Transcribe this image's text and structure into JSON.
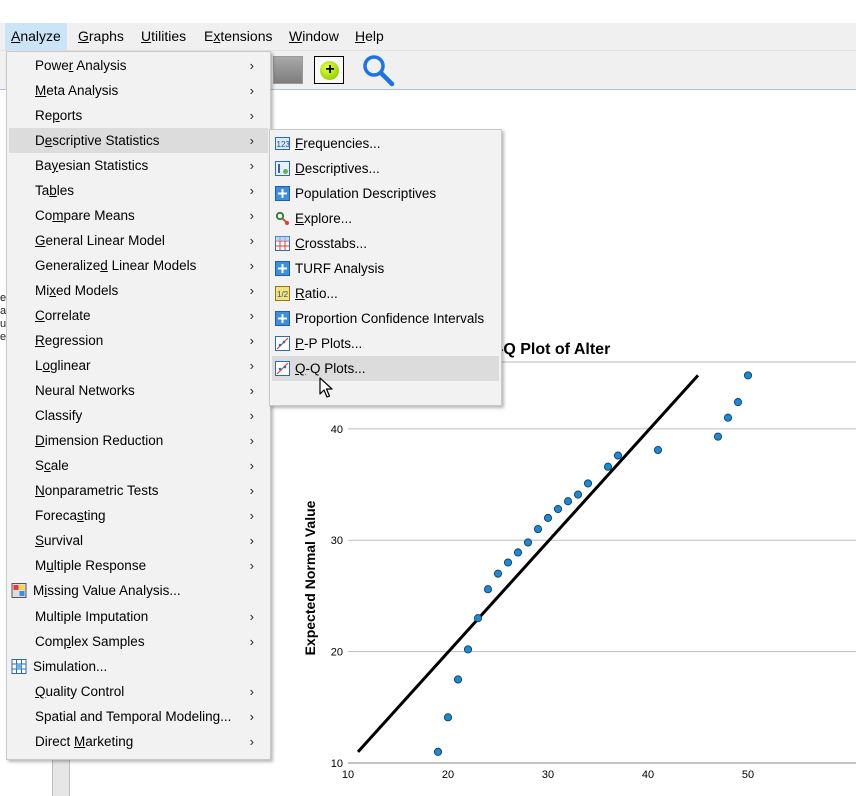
{
  "menubar": {
    "items": [
      {
        "label": "Analyze",
        "mnemonic": "A"
      },
      {
        "label": "Graphs",
        "mnemonic": "G"
      },
      {
        "label": "Utilities",
        "mnemonic": "U"
      },
      {
        "label": "Extensions",
        "mnemonic": "x"
      },
      {
        "label": "Window",
        "mnemonic": "W"
      },
      {
        "label": "Help",
        "mnemonic": "H"
      }
    ]
  },
  "background_text": [
    "er",
    "a",
    "us",
    "er"
  ],
  "analyze_menu": {
    "items": [
      {
        "label": "Power Analysis",
        "submenu": true
      },
      {
        "label": "Meta Analysis",
        "submenu": true
      },
      {
        "label": "Reports",
        "submenu": true
      },
      {
        "label": "Descriptive Statistics",
        "submenu": true,
        "highlighted": true
      },
      {
        "label": "Bayesian Statistics",
        "submenu": true
      },
      {
        "label": "Tables",
        "submenu": true
      },
      {
        "label": "Compare Means",
        "submenu": true
      },
      {
        "label": "General Linear Model",
        "submenu": true
      },
      {
        "label": "Generalized Linear Models",
        "submenu": true
      },
      {
        "label": "Mixed Models",
        "submenu": true
      },
      {
        "label": "Correlate",
        "submenu": true
      },
      {
        "label": "Regression",
        "submenu": true
      },
      {
        "label": "Loglinear",
        "submenu": true
      },
      {
        "label": "Neural Networks",
        "submenu": true
      },
      {
        "label": "Classify",
        "submenu": true
      },
      {
        "label": "Dimension Reduction",
        "submenu": true
      },
      {
        "label": "Scale",
        "submenu": true
      },
      {
        "label": "Nonparametric Tests",
        "submenu": true
      },
      {
        "label": "Forecasting",
        "submenu": true
      },
      {
        "label": "Survival",
        "submenu": true
      },
      {
        "label": "Multiple Response",
        "submenu": true
      },
      {
        "label": "Missing Value Analysis...",
        "submenu": false,
        "icon": "missing-value-icon"
      },
      {
        "label": "Multiple Imputation",
        "submenu": true
      },
      {
        "label": "Complex Samples",
        "submenu": true
      },
      {
        "label": "Simulation...",
        "submenu": false,
        "icon": "simulation-icon"
      },
      {
        "label": "Quality Control",
        "submenu": true
      },
      {
        "label": "Spatial and Temporal Modeling...",
        "submenu": true
      },
      {
        "label": "Direct Marketing",
        "submenu": true
      }
    ]
  },
  "descriptive_submenu": {
    "items": [
      {
        "label": "Frequencies...",
        "icon": "frequencies-icon"
      },
      {
        "label": "Descriptives...",
        "icon": "descriptives-icon"
      },
      {
        "label": "Population Descriptives",
        "icon": "plus-box-icon"
      },
      {
        "label": "Explore...",
        "icon": "explore-icon"
      },
      {
        "label": "Crosstabs...",
        "icon": "crosstabs-icon"
      },
      {
        "label": "TURF Analysis",
        "icon": "plus-box-icon"
      },
      {
        "label": "Ratio...",
        "icon": "ratio-icon"
      },
      {
        "label": "Proportion Confidence Intervals",
        "icon": "plus-box-icon"
      },
      {
        "label": "P-P Plots...",
        "icon": "pp-plot-icon"
      },
      {
        "label": "Q-Q Plots...",
        "icon": "qq-plot-icon",
        "highlighted": true
      }
    ]
  },
  "chart_data": {
    "type": "scatter",
    "title": "-Q Plot of Alter",
    "xlabel": "",
    "ylabel": "Expected Normal Value",
    "xlim": [
      10,
      50
    ],
    "ylim": [
      10,
      46
    ],
    "x_ticks": [
      10,
      20,
      30,
      40,
      50
    ],
    "y_ticks": [
      10,
      20,
      30,
      40
    ],
    "grid": "horizontal",
    "point_color": "#1f88d0",
    "reference_line": {
      "x": [
        11,
        45
      ],
      "y": [
        11,
        44.8
      ]
    },
    "points": [
      {
        "x": 19,
        "y": 11.0
      },
      {
        "x": 20,
        "y": 14.1
      },
      {
        "x": 21,
        "y": 17.5
      },
      {
        "x": 22,
        "y": 20.2
      },
      {
        "x": 23,
        "y": 23.0
      },
      {
        "x": 24,
        "y": 25.6
      },
      {
        "x": 25,
        "y": 27.0
      },
      {
        "x": 26,
        "y": 28.0
      },
      {
        "x": 27,
        "y": 28.9
      },
      {
        "x": 28,
        "y": 29.8
      },
      {
        "x": 29,
        "y": 31.0
      },
      {
        "x": 30,
        "y": 32.0
      },
      {
        "x": 31,
        "y": 32.8
      },
      {
        "x": 32,
        "y": 33.5
      },
      {
        "x": 33,
        "y": 34.1
      },
      {
        "x": 34,
        "y": 35.1
      },
      {
        "x": 36,
        "y": 36.6
      },
      {
        "x": 37,
        "y": 37.6
      },
      {
        "x": 41,
        "y": 38.1
      },
      {
        "x": 47,
        "y": 39.3
      },
      {
        "x": 48,
        "y": 41.0
      },
      {
        "x": 49,
        "y": 42.4
      },
      {
        "x": 50,
        "y": 44.8
      }
    ]
  }
}
